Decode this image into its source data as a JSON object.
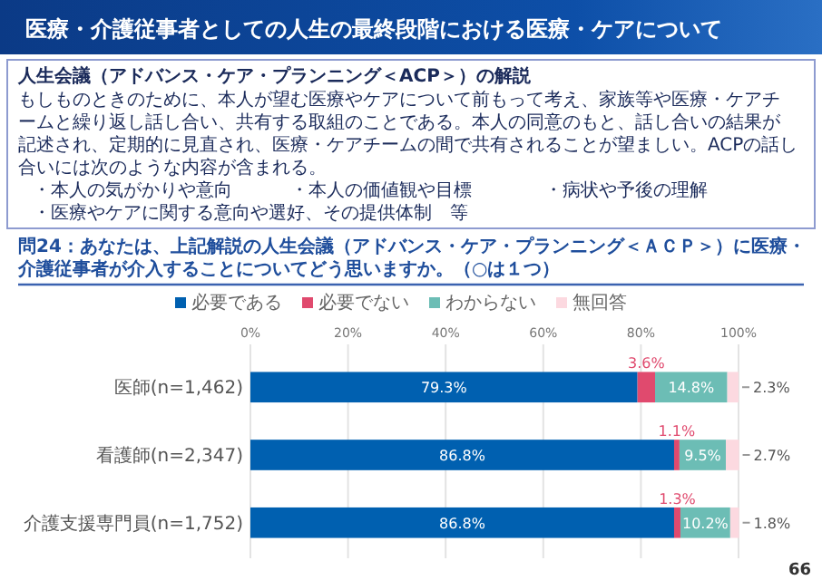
{
  "chart_data": {
    "type": "bar",
    "orientation": "horizontal",
    "stacked": true,
    "title": "医療・介護従事者としての人生の最終段階における医療・ケアについて",
    "subtitle": "問24：あなたは、上記解説の人生会議（アドバンス・ケア・プランニング＜ＡＣＰ＞）に医療・介護従事者が介入することについてどう思いますか。（○は１つ）",
    "annotations": [
      "人生会議（アドバンス・ケア・プランニング＜ACP＞）の解説",
      "もしものときのために、本人が望む医療やケアについて前もって考え、家族等や医療・ケアチームと繰り返し話し合い、共有する取組のことである。本人の同意のもと、話し合いの結果が記述され、定期的に見直され、医療・ケアチームの間で共有されることが望ましい。ACPの話し合いには次のような内容が含まれる。",
      "・本人の気がかりや意向",
      "・本人の価値観や目標",
      "・病状や予後の理解",
      "・医療やケアに関する意向や選好、その提供体制　等",
      "66"
    ],
    "categories": [
      "医師(n=1,462)",
      "看護師(n=2,347)",
      "介護支援専門員(n=1,752)"
    ],
    "series": [
      {
        "name": "必要である",
        "color": "#0060b0",
        "values": [
          79.3,
          86.8,
          86.8
        ],
        "value_labels": [
          "79.3%",
          "86.8%",
          "86.8%"
        ]
      },
      {
        "name": "必要でない",
        "color": "#e04a6e",
        "values": [
          3.6,
          1.1,
          1.3
        ],
        "value_labels": [
          "3.6%",
          "1.1%",
          "1.3%"
        ]
      },
      {
        "name": "わからない",
        "color": "#6cbdb5",
        "values": [
          14.8,
          9.5,
          10.2
        ],
        "value_labels": [
          "14.8%",
          "9.5%",
          "10.2%"
        ]
      },
      {
        "name": "無回答",
        "color": "#fcd9e0",
        "values": [
          2.3,
          2.7,
          1.8
        ],
        "value_labels": [
          "2.3%",
          "2.7%",
          "1.8%"
        ]
      }
    ],
    "xlim": [
      0,
      100
    ],
    "xticks": [
      {
        "value": 0,
        "label": "0%"
      },
      {
        "value": 20,
        "label": "20%"
      },
      {
        "value": 40,
        "label": "40%"
      },
      {
        "value": 60,
        "label": "60%"
      },
      {
        "value": 80,
        "label": "80%"
      },
      {
        "value": 100,
        "label": "100%"
      }
    ],
    "grid": "x",
    "legend": "top"
  }
}
